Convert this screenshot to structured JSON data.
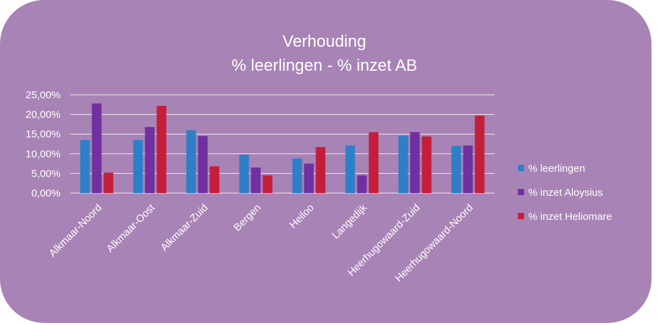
{
  "chart_data": {
    "type": "bar",
    "title_lines": [
      "Verhouding",
      "% leerlingen - % inzet AB"
    ],
    "xlabel": "",
    "ylabel": "",
    "ylim": [
      0,
      0.25
    ],
    "yticks": [
      "0,00%",
      "5,00%",
      "10,00%",
      "15,00%",
      "20,00%",
      "25,00%"
    ],
    "grid": true,
    "legend_position": "right",
    "categories": [
      "Alkmaar-Noord",
      "Alkmaar-Oost",
      "Alkmaar-Zuid",
      "Bergen",
      "Heiloo",
      "Langedijk",
      "Heerhugowaard-Zuid",
      "Heerhugowaard-Noord"
    ],
    "series": [
      {
        "name": "% leerlingen",
        "color": "#2e7fc7",
        "values": [
          0.135,
          0.135,
          0.16,
          0.098,
          0.088,
          0.121,
          0.146,
          0.12
        ]
      },
      {
        "name": "% inzet Aloysius",
        "color": "#7030a0",
        "values": [
          0.228,
          0.168,
          0.145,
          0.065,
          0.075,
          0.045,
          0.155,
          0.121
        ]
      },
      {
        "name": "% inzet Heliomare",
        "color": "#c41e3a",
        "values": [
          0.052,
          0.222,
          0.068,
          0.045,
          0.117,
          0.155,
          0.144,
          0.197
        ]
      }
    ]
  }
}
